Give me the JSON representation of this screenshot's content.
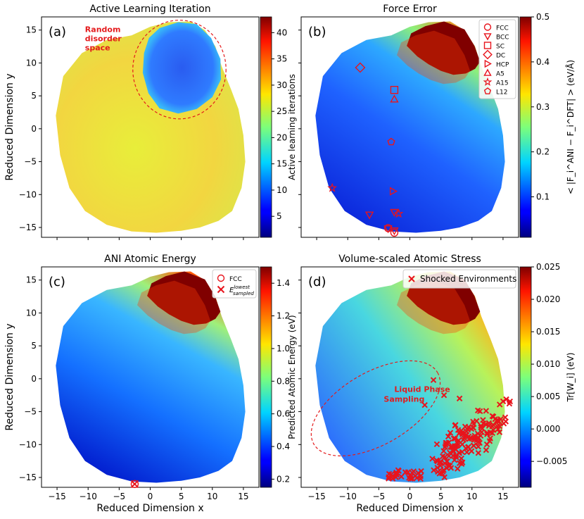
{
  "chart_data": [
    {
      "type": "heatmap",
      "panel_label": "(a)",
      "title": "Active Learning Iteration",
      "xlabel": "",
      "ylabel": "Reduced Dimension y",
      "xlim": [
        -17.5,
        17.5
      ],
      "ylim": [
        -16.5,
        17
      ],
      "xticks": [
        -15,
        -10,
        -5,
        0,
        5,
        10,
        15
      ],
      "yticks": [
        -15,
        -10,
        -5,
        0,
        5,
        10,
        15
      ],
      "show_xtick_labels": false,
      "show_ytick_labels": true,
      "colorbar": {
        "label": "Active learning iterations",
        "min": 1,
        "max": 43,
        "ticks": [
          5,
          10,
          15,
          20,
          25,
          30,
          35,
          40
        ]
      },
      "annotations": [
        {
          "text": "Random",
          "x": -10.5,
          "y": 14.7,
          "color": "#e41a1c"
        },
        {
          "text": "disorder",
          "x": -10.5,
          "y": 13.3,
          "color": "#e41a1c"
        },
        {
          "text": "space",
          "x": -10.5,
          "y": 11.9,
          "color": "#e41a1c"
        }
      ],
      "dashed_ellipses": [
        {
          "cx": 4.7,
          "cy": 9,
          "rx": 7.5,
          "ry": 7.5,
          "angle": 0
        }
      ],
      "markers": []
    },
    {
      "type": "heatmap",
      "panel_label": "(b)",
      "title": "Force Error",
      "xlabel": "",
      "ylabel": "",
      "xlim": [
        -17.5,
        17.5
      ],
      "ylim": [
        -16.5,
        17
      ],
      "xticks": [
        -15,
        -10,
        -5,
        0,
        5,
        10,
        15
      ],
      "yticks": [
        -15,
        -10,
        -5,
        0,
        5,
        10,
        15
      ],
      "show_xtick_labels": false,
      "show_ytick_labels": false,
      "colorbar": {
        "label": "< |F_i^ANI − F_i^DFT| > (eV/Å)",
        "min": 0.01,
        "max": 0.5,
        "ticks": [
          0.1,
          0.2,
          0.3,
          0.4,
          0.5
        ]
      },
      "annotations": [],
      "dashed_ellipses": [],
      "markers": [
        {
          "x": -2.5,
          "y": -15.8,
          "symbol": "circle"
        },
        {
          "x": -2.5,
          "y": -15.5,
          "symbol": "triangle-down"
        },
        {
          "x": -3.5,
          "y": -15.2,
          "symbol": "triangle-down"
        },
        {
          "x": -3.5,
          "y": -15.1,
          "symbol": "circle"
        },
        {
          "x": -2.5,
          "y": -12.7,
          "symbol": "triangle-down"
        },
        {
          "x": -6.5,
          "y": -13.1,
          "symbol": "triangle-down"
        },
        {
          "x": -2.7,
          "y": -9.5,
          "symbol": "triangle-right"
        },
        {
          "x": -1.8,
          "y": -12.9,
          "symbol": "star"
        },
        {
          "x": -12.5,
          "y": -9,
          "symbol": "star"
        },
        {
          "x": -3.0,
          "y": -2.0,
          "symbol": "pentagon"
        },
        {
          "x": -8.0,
          "y": 9.3,
          "symbol": "diamond"
        },
        {
          "x": -2.5,
          "y": 5.9,
          "symbol": "square"
        },
        {
          "x": -2.5,
          "y": 4.5,
          "symbol": "triangle-up"
        }
      ],
      "legend": {
        "placement": "top-right",
        "entries": [
          {
            "label": "FCC",
            "symbol": "circle"
          },
          {
            "label": "BCC",
            "symbol": "triangle-down"
          },
          {
            "label": "SC",
            "symbol": "square"
          },
          {
            "label": "DC",
            "symbol": "diamond"
          },
          {
            "label": "HCP",
            "symbol": "triangle-right"
          },
          {
            "label": "A5",
            "symbol": "triangle-up"
          },
          {
            "label": "A15",
            "symbol": "star"
          },
          {
            "label": "L12",
            "symbol": "pentagon"
          }
        ]
      }
    },
    {
      "type": "heatmap",
      "panel_label": "(c)",
      "title": "ANI Atomic Energy",
      "xlabel": "Reduced Dimension x",
      "ylabel": "Reduced Dimension y",
      "xlim": [
        -17.5,
        17.5
      ],
      "ylim": [
        -16.5,
        17
      ],
      "xticks": [
        -15,
        -10,
        -5,
        0,
        5,
        10,
        15
      ],
      "yticks": [
        -15,
        -10,
        -5,
        0,
        5,
        10,
        15
      ],
      "show_xtick_labels": true,
      "show_ytick_labels": true,
      "colorbar": {
        "label": "Predicted Atomic Energy (eV)",
        "min": 0.15,
        "max": 1.5,
        "ticks": [
          0.2,
          0.4,
          0.6,
          0.8,
          1.0,
          1.2,
          1.4
        ]
      },
      "annotations": [],
      "dashed_ellipses": [],
      "markers": [
        {
          "x": -2.5,
          "y": -16.0,
          "symbol": "circle"
        },
        {
          "x": -2.5,
          "y": -16.0,
          "symbol": "x"
        }
      ],
      "legend": {
        "placement": "top-right",
        "entries": [
          {
            "label": "FCC",
            "symbol": "circle"
          },
          {
            "label": "E_sampled^lowest",
            "symbol": "x"
          }
        ]
      }
    },
    {
      "type": "heatmap",
      "panel_label": "(d)",
      "title": "Volume-scaled Atomic Stress",
      "xlabel": "Reduced Dimension x",
      "ylabel": "",
      "xlim": [
        -17.5,
        17.5
      ],
      "ylim": [
        -16.5,
        17
      ],
      "xticks": [
        -15,
        -10,
        -5,
        0,
        5,
        10,
        15
      ],
      "yticks": [
        -15,
        -10,
        -5,
        0,
        5,
        10,
        15
      ],
      "show_xtick_labels": true,
      "show_ytick_labels": false,
      "colorbar": {
        "label": "Tr[W_i] (eV)",
        "min": -0.009,
        "max": 0.025,
        "ticks": [
          -0.005,
          0.0,
          0.005,
          0.01,
          0.015,
          0.02,
          0.025
        ]
      },
      "annotations": [
        {
          "text": "Liquid Phase",
          "x": -2.5,
          "y": -2.0,
          "color": "#e41a1c"
        },
        {
          "text": "Sampling",
          "x": -4.2,
          "y": -3.5,
          "color": "#e41a1c"
        }
      ],
      "dashed_ellipses": [
        {
          "cx": -5.5,
          "cy": -4.5,
          "rx": 11.5,
          "ry": 5.5,
          "angle": -30
        }
      ],
      "markers_description": "Shocked Environments cluster",
      "legend": {
        "placement": "top-right",
        "entries": [
          {
            "label": "Shocked Environments",
            "symbol": "x"
          }
        ]
      }
    }
  ]
}
